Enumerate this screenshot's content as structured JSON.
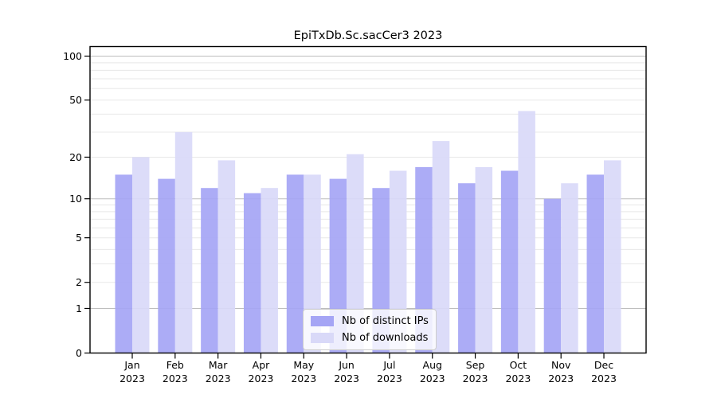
{
  "chart_data": {
    "type": "bar",
    "title": "EpiTxDb.Sc.sacCer3 2023",
    "year": "2023",
    "categories": [
      "Jan 2023",
      "Feb 2023",
      "Mar 2023",
      "Apr 2023",
      "May 2023",
      "Jun 2023",
      "Jul 2023",
      "Aug 2023",
      "Sep 2023",
      "Oct 2023",
      "Nov 2023",
      "Dec 2023"
    ],
    "month_labels": [
      "Jan",
      "Feb",
      "Mar",
      "Apr",
      "May",
      "Jun",
      "Jul",
      "Aug",
      "Sep",
      "Oct",
      "Nov",
      "Dec"
    ],
    "series": [
      {
        "name": "Nb of distinct IPs",
        "color": "#a5a5f5",
        "values": [
          15,
          14,
          12,
          11,
          15,
          14,
          12,
          17,
          13,
          16,
          10,
          15
        ]
      },
      {
        "name": "Nb of downloads",
        "color": "#d9d9f8",
        "values": [
          20,
          30,
          19,
          12,
          15,
          21,
          16,
          26,
          17,
          42,
          13,
          19
        ]
      }
    ],
    "yscale": "log1p",
    "ylim": [
      0,
      118
    ],
    "y_tick_labels": [
      0,
      1,
      2,
      5,
      10,
      20,
      50,
      100
    ],
    "y_major_gridlines": [
      1,
      10,
      100
    ],
    "y_minor_gridlines": [
      2,
      3,
      4,
      5,
      6,
      7,
      8,
      9,
      20,
      30,
      40,
      50,
      60,
      70,
      80,
      90
    ],
    "grid": true,
    "legend_position": "lower-center-inside",
    "colors": {
      "axis": "#000000",
      "major_grid": "#bdbdbd",
      "minor_grid": "#e8e8e8",
      "background": "#ffffff"
    }
  }
}
